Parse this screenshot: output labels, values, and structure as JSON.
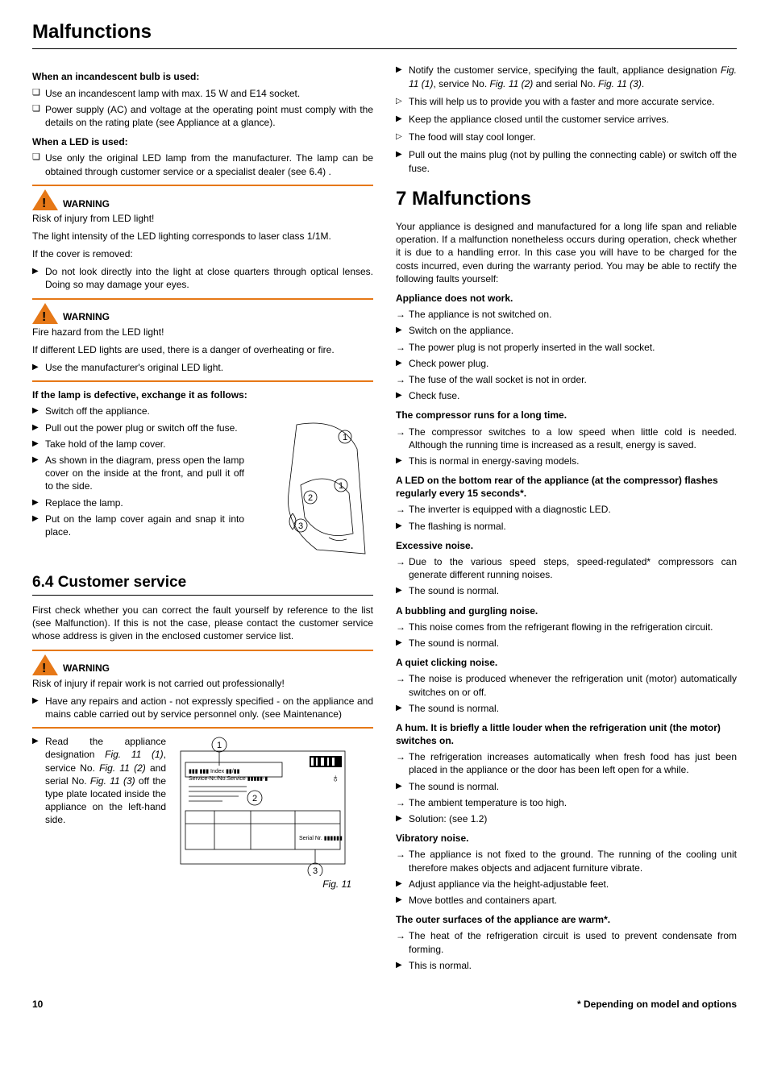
{
  "title": "Malfunctions",
  "left": {
    "incandescent_head": "When an incandescent bulb is used:",
    "incandescent_items": [
      "Use an incandescent lamp with max. 15 W and E14 socket.",
      "Power supply (AC) and voltage at the operating point must comply with the details on the rating plate (see Appliance at a glance)."
    ],
    "led_head": "When a LED is used:",
    "led_items": [
      "Use only the original LED lamp from the manufacturer. The lamp can be obtained through customer service or a specialist dealer (see 6.4) ."
    ],
    "warn1": {
      "label": "WARNING",
      "l1": "Risk of injury from LED light!",
      "l2": "The light intensity of the LED lighting corresponds to laser class 1/1M.",
      "l3": "If the cover is removed:",
      "items": [
        "Do not look directly into the light at close quarters through optical lenses. Doing so may damage your eyes."
      ]
    },
    "warn2": {
      "label": "WARNING",
      "l1": "Fire hazard from the LED light!",
      "l2": "If different LED lights are used, there is a danger of overheating or fire.",
      "items": [
        "Use the manufacturer's original LED light."
      ]
    },
    "lamp_head": "If the lamp is defective, exchange it as follows:",
    "lamp_items": [
      "Switch off the appliance.",
      "Pull out the power plug or switch off the fuse.",
      "Take hold of the lamp cover.",
      "As shown in the diagram, press open the lamp cover on the inside at the front, and pull it off to the side.",
      "Replace the lamp.",
      "Put on the lamp cover again and snap it into place."
    ],
    "svc_title": "6.4 Customer service",
    "svc_intro": "First check whether you can correct the fault yourself by reference to the list (see Malfunction). If this is not the case, please contact the customer service whose address is given in the enclosed customer service list.",
    "warn3": {
      "label": "WARNING",
      "l1": "Risk of injury if repair work is not carried out professionally!",
      "items": [
        "Have any repairs and action - not expressly specified - on the appliance and mains cable carried out by service personnel only. (see Maintenance)"
      ]
    },
    "svc_read_prefix": "Read the appliance designation ",
    "svc_read_fig1": "Fig. 11 (1)",
    "svc_read_mid1": ", service No. ",
    "svc_read_fig2": "Fig. 11 (2)",
    "svc_read_mid2": " and serial No. ",
    "svc_read_fig3": "Fig. 11 (3)",
    "svc_read_suffix": " off the type plate located inside the appliance on the left-hand side.",
    "fig_caption": "Fig. 11"
  },
  "right": {
    "top_tri": [
      "Notify the customer service, specifying the fault, appliance designation Fig. 11 (1), service No. Fig. 11 (2) and serial No. Fig. 11 (3)."
    ],
    "top_ang1": [
      "This will help us to provide you with a faster and more accurate service."
    ],
    "top_tri2": [
      "Keep the appliance closed until the customer service arrives."
    ],
    "top_ang2": [
      "The food will stay cool longer."
    ],
    "top_tri3": [
      "Pull out the mains plug (not by pulling the connecting cable) or switch off the fuse."
    ],
    "chapter": "7 Malfunctions",
    "intro": "Your appliance is designed and manufactured for a long life span and reliable operation. If a malfunction nonetheless occurs during operation, check whether it is due to a handling error. In this case you will have to be charged for the costs incurred, even during the warranty period. You may be able to rectify the following faults yourself:",
    "faults": [
      {
        "head": "Appliance does not work.",
        "rows": [
          {
            "t": "arr",
            "v": "The appliance is not switched on."
          },
          {
            "t": "tri",
            "v": "Switch on the appliance."
          },
          {
            "t": "arr",
            "v": "The power plug is not properly inserted in the wall socket."
          },
          {
            "t": "tri",
            "v": "Check power plug."
          },
          {
            "t": "arr",
            "v": "The fuse of the wall socket is not in order."
          },
          {
            "t": "tri",
            "v": "Check fuse."
          }
        ]
      },
      {
        "head": "The compressor runs for a long time.",
        "rows": [
          {
            "t": "arr",
            "v": "The compressor switches to a low speed when little cold is needed. Although the running time is increased as a result, energy is saved."
          },
          {
            "t": "tri",
            "v": "This is normal in energy-saving models."
          }
        ]
      },
      {
        "head": "A LED on the bottom rear of the appliance (at the compressor) flashes regularly every 15 seconds*.",
        "rows": [
          {
            "t": "arr",
            "v": "The inverter is equipped with a diagnostic LED."
          },
          {
            "t": "tri",
            "v": "The flashing is normal."
          }
        ]
      },
      {
        "head": "Excessive noise.",
        "rows": [
          {
            "t": "arr",
            "v": "Due to the various speed steps, speed-regulated* compressors can generate different running noises."
          },
          {
            "t": "tri",
            "v": "The sound is normal."
          }
        ]
      },
      {
        "head": "A bubbling and gurgling noise.",
        "rows": [
          {
            "t": "arr",
            "v": "This noise comes from the refrigerant flowing in the refrigeration circuit."
          },
          {
            "t": "tri",
            "v": "The sound is normal."
          }
        ]
      },
      {
        "head": "A quiet clicking noise.",
        "rows": [
          {
            "t": "arr",
            "v": "The noise is produced whenever the refrigeration unit (motor) automatically switches on or off."
          },
          {
            "t": "tri",
            "v": "The sound is normal."
          }
        ]
      },
      {
        "head": "A hum. It is briefly a little louder when the refrigeration unit (the motor) switches on.",
        "rows": [
          {
            "t": "arr",
            "v": "The refrigeration increases automatically when fresh food has just been placed in the appliance or the door has been left open for a while."
          },
          {
            "t": "tri",
            "v": "The sound is normal."
          },
          {
            "t": "arr",
            "v": "The ambient temperature is too high."
          },
          {
            "t": "tri",
            "v": "Solution: (see 1.2)"
          }
        ]
      },
      {
        "head": "Vibratory noise.",
        "rows": [
          {
            "t": "arr",
            "v": "The appliance is not fixed to the ground. The running of the cooling unit therefore makes objects and adjacent furniture vibrate."
          },
          {
            "t": "tri",
            "v": "Adjust appliance via the height-adjustable feet."
          },
          {
            "t": "tri",
            "v": "Move bottles and containers apart."
          }
        ]
      },
      {
        "head": "The outer surfaces of the appliance are warm*.",
        "rows": [
          {
            "t": "arr",
            "v": "The heat of the refrigeration circuit is used to prevent condensate from forming."
          },
          {
            "t": "tri",
            "v": "This is normal."
          }
        ]
      }
    ]
  },
  "footer": {
    "page": "10",
    "note": "* Depending on model and options"
  }
}
